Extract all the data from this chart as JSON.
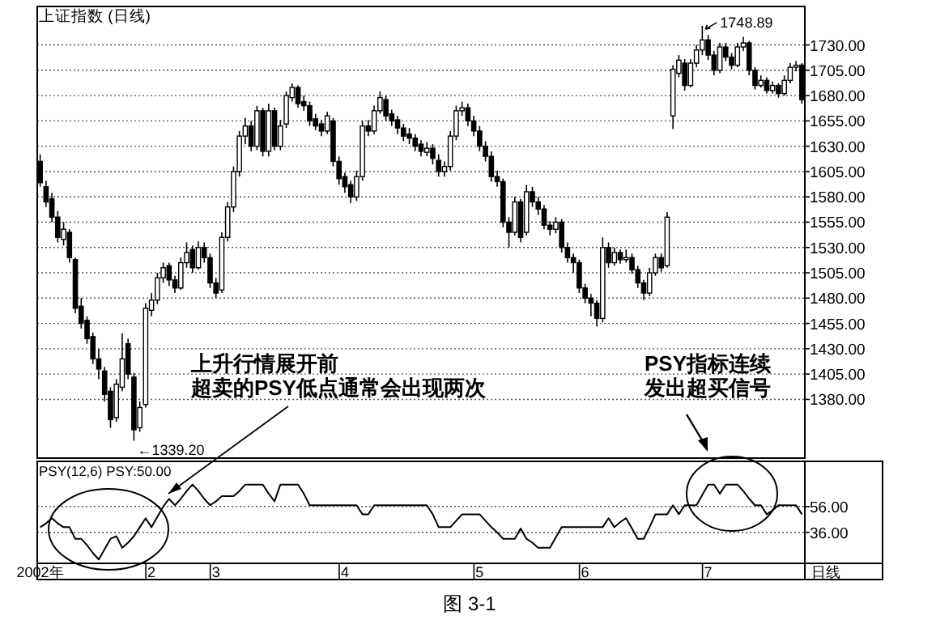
{
  "chart_data": [
    {
      "type": "candlestick",
      "title": "上证指数 (日线)",
      "color": "#000000",
      "categories": [
        null,
        null,
        null,
        null,
        null,
        null,
        null,
        null,
        null,
        null,
        null,
        null,
        null,
        null,
        null,
        null,
        null,
        null,
        null,
        null,
        null,
        null,
        null,
        null,
        null,
        null,
        null,
        null,
        null,
        null,
        null,
        null,
        null,
        null,
        null,
        null,
        null,
        null,
        null,
        null,
        null,
        null,
        null,
        null,
        null,
        null,
        null,
        null,
        null,
        null,
        null,
        null,
        null,
        null,
        null,
        null,
        null,
        null,
        null,
        null,
        null,
        null,
        null,
        null,
        null,
        null,
        null,
        null,
        null,
        null,
        null,
        null,
        null,
        null,
        null,
        null,
        null,
        null,
        null,
        null,
        null,
        null,
        null,
        null,
        null,
        null,
        null,
        null,
        null,
        null,
        null,
        null,
        null,
        null,
        null,
        null,
        null,
        null,
        null,
        null,
        null,
        null,
        null,
        null,
        null,
        null,
        null,
        null,
        null,
        null,
        null,
        null,
        null,
        null,
        null,
        null,
        null,
        null,
        null,
        null,
        null,
        null,
        null,
        null,
        null,
        null,
        null,
        null,
        null,
        null,
        null
      ],
      "ohlc": [
        [
          1615,
          1622,
          1590,
          1594
        ],
        [
          1590,
          1596,
          1570,
          1575
        ],
        [
          1578,
          1584,
          1555,
          1560
        ],
        [
          1560,
          1566,
          1535,
          1540
        ],
        [
          1538,
          1555,
          1532,
          1548
        ],
        [
          1545,
          1548,
          1515,
          1520
        ],
        [
          1518,
          1520,
          1465,
          1470
        ],
        [
          1472,
          1480,
          1450,
          1455
        ],
        [
          1458,
          1462,
          1435,
          1440
        ],
        [
          1442,
          1446,
          1415,
          1420
        ],
        [
          1420,
          1430,
          1400,
          1410
        ],
        [
          1408,
          1412,
          1378,
          1385
        ],
        [
          1388,
          1392,
          1352,
          1360
        ],
        [
          1362,
          1400,
          1358,
          1395
        ],
        [
          1392,
          1445,
          1388,
          1420
        ],
        [
          1435,
          1440,
          1400,
          1405
        ],
        [
          1402,
          1406,
          1339.2,
          1350
        ],
        [
          1352,
          1378,
          1348,
          1372
        ],
        [
          1375,
          1475,
          1372,
          1470
        ],
        [
          1468,
          1485,
          1462,
          1478
        ],
        [
          1478,
          1505,
          1474,
          1500
        ],
        [
          1500,
          1515,
          1495,
          1510
        ],
        [
          1512,
          1515,
          1492,
          1498
        ],
        [
          1498,
          1502,
          1485,
          1490
        ],
        [
          1490,
          1520,
          1488,
          1515
        ],
        [
          1515,
          1535,
          1510,
          1525
        ],
        [
          1528,
          1532,
          1505,
          1510
        ],
        [
          1510,
          1536,
          1508,
          1530
        ],
        [
          1530,
          1535,
          1515,
          1520
        ],
        [
          1520,
          1524,
          1490,
          1495
        ],
        [
          1495,
          1500,
          1480,
          1485
        ],
        [
          1488,
          1545,
          1485,
          1540
        ],
        [
          1540,
          1575,
          1536,
          1570
        ],
        [
          1570,
          1610,
          1565,
          1605
        ],
        [
          1605,
          1645,
          1600,
          1640
        ],
        [
          1640,
          1658,
          1632,
          1650
        ],
        [
          1650,
          1655,
          1625,
          1630
        ],
        [
          1630,
          1670,
          1626,
          1665
        ],
        [
          1665,
          1668,
          1620,
          1625
        ],
        [
          1625,
          1672,
          1620,
          1665
        ],
        [
          1665,
          1668,
          1626,
          1630
        ],
        [
          1630,
          1656,
          1626,
          1650
        ],
        [
          1652,
          1684,
          1648,
          1680
        ],
        [
          1678,
          1692,
          1674,
          1688
        ],
        [
          1688,
          1690,
          1668,
          1672
        ],
        [
          1674,
          1680,
          1665,
          1670
        ],
        [
          1670,
          1674,
          1650,
          1655
        ],
        [
          1657,
          1662,
          1646,
          1650
        ],
        [
          1652,
          1656,
          1640,
          1645
        ],
        [
          1645,
          1664,
          1642,
          1660
        ],
        [
          1655,
          1658,
          1610,
          1615
        ],
        [
          1615,
          1620,
          1592,
          1598
        ],
        [
          1600,
          1604,
          1584,
          1590
        ],
        [
          1592,
          1596,
          1574,
          1580
        ],
        [
          1580,
          1606,
          1576,
          1600
        ],
        [
          1600,
          1655,
          1596,
          1650
        ],
        [
          1650,
          1656,
          1640,
          1645
        ],
        [
          1645,
          1670,
          1642,
          1665
        ],
        [
          1665,
          1684,
          1662,
          1678
        ],
        [
          1676,
          1680,
          1655,
          1660
        ],
        [
          1662,
          1666,
          1650,
          1655
        ],
        [
          1656,
          1660,
          1642,
          1648
        ],
        [
          1648,
          1652,
          1635,
          1640
        ],
        [
          1642,
          1648,
          1632,
          1638
        ],
        [
          1638,
          1642,
          1625,
          1630
        ],
        [
          1632,
          1636,
          1620,
          1625
        ],
        [
          1624,
          1634,
          1620,
          1628
        ],
        [
          1628,
          1632,
          1612,
          1618
        ],
        [
          1616,
          1622,
          1600,
          1605
        ],
        [
          1605,
          1615,
          1600,
          1610
        ],
        [
          1610,
          1645,
          1606,
          1640
        ],
        [
          1640,
          1670,
          1636,
          1665
        ],
        [
          1665,
          1674,
          1660,
          1668
        ],
        [
          1668,
          1672,
          1650,
          1655
        ],
        [
          1655,
          1660,
          1640,
          1645
        ],
        [
          1645,
          1650,
          1625,
          1630
        ],
        [
          1630,
          1635,
          1615,
          1620
        ],
        [
          1620,
          1625,
          1595,
          1600
        ],
        [
          1600,
          1606,
          1590,
          1595
        ],
        [
          1595,
          1598,
          1550,
          1555
        ],
        [
          1555,
          1560,
          1530,
          1545
        ],
        [
          1545,
          1580,
          1542,
          1575
        ],
        [
          1575,
          1578,
          1535,
          1540
        ],
        [
          1545,
          1592,
          1542,
          1585
        ],
        [
          1585,
          1590,
          1570,
          1575
        ],
        [
          1575,
          1580,
          1562,
          1568
        ],
        [
          1568,
          1572,
          1548,
          1552
        ],
        [
          1552,
          1556,
          1542,
          1548
        ],
        [
          1548,
          1560,
          1544,
          1555
        ],
        [
          1555,
          1558,
          1525,
          1530
        ],
        [
          1530,
          1535,
          1515,
          1520
        ],
        [
          1520,
          1524,
          1505,
          1515
        ],
        [
          1515,
          1518,
          1485,
          1490
        ],
        [
          1490,
          1494,
          1475,
          1480
        ],
        [
          1480,
          1484,
          1462,
          1475
        ],
        [
          1475,
          1478,
          1452,
          1460
        ],
        [
          1460,
          1540,
          1456,
          1530
        ],
        [
          1530,
          1535,
          1510,
          1515
        ],
        [
          1515,
          1530,
          1512,
          1525
        ],
        [
          1525,
          1528,
          1514,
          1518
        ],
        [
          1518,
          1528,
          1515,
          1520
        ],
        [
          1520,
          1524,
          1504,
          1508
        ],
        [
          1508,
          1512,
          1490,
          1495
        ],
        [
          1495,
          1498,
          1478,
          1485
        ],
        [
          1485,
          1510,
          1482,
          1505
        ],
        [
          1505,
          1524,
          1502,
          1520
        ],
        [
          1520,
          1524,
          1506,
          1510
        ],
        [
          1512,
          1565,
          1510,
          1560
        ],
        [
          1660,
          1710,
          1647,
          1706
        ],
        [
          1702,
          1720,
          1698,
          1715
        ],
        [
          1712,
          1716,
          1685,
          1690
        ],
        [
          1690,
          1716,
          1688,
          1712
        ],
        [
          1712,
          1730,
          1708,
          1725
        ],
        [
          1725,
          1748.89,
          1720,
          1735
        ],
        [
          1735,
          1740,
          1715,
          1720
        ],
        [
          1720,
          1724,
          1700,
          1705
        ],
        [
          1705,
          1732,
          1702,
          1728
        ],
        [
          1728,
          1732,
          1714,
          1718
        ],
        [
          1718,
          1722,
          1706,
          1710
        ],
        [
          1710,
          1732,
          1708,
          1728
        ],
        [
          1728,
          1738,
          1724,
          1732
        ],
        [
          1732,
          1734,
          1700,
          1705
        ],
        [
          1705,
          1708,
          1686,
          1690
        ],
        [
          1690,
          1700,
          1688,
          1695
        ],
        [
          1695,
          1698,
          1682,
          1685
        ],
        [
          1685,
          1694,
          1682,
          1690
        ],
        [
          1690,
          1692,
          1678,
          1682
        ],
        [
          1682,
          1700,
          1680,
          1695
        ],
        [
          1695,
          1712,
          1692,
          1708
        ],
        [
          1708,
          1714,
          1704,
          1710
        ],
        [
          1710,
          1712,
          1672,
          1676
        ]
      ],
      "ylim": [
        1322,
        1768
      ],
      "yticks": [
        {
          "value": 1380,
          "label": "1380.00"
        },
        {
          "value": 1405,
          "label": "1405.00"
        },
        {
          "value": 1430,
          "label": "1430.00"
        },
        {
          "value": 1455,
          "label": "1455.00"
        },
        {
          "value": 1480,
          "label": "1480.00"
        },
        {
          "value": 1505,
          "label": "1505.00"
        },
        {
          "value": 1530,
          "label": "1530.00"
        },
        {
          "value": 1555,
          "label": "1555.00"
        },
        {
          "value": 1580,
          "label": "1580.00"
        },
        {
          "value": 1605,
          "label": "1605.00"
        },
        {
          "value": 1630,
          "label": "1630.00"
        },
        {
          "value": 1655,
          "label": "1655.00"
        },
        {
          "value": 1680,
          "label": "1680.00"
        },
        {
          "value": 1705,
          "label": "1705.00"
        },
        {
          "value": 1730,
          "label": "1730.00"
        }
      ],
      "grid": "y",
      "annotations": [
        "1748.89",
        "←1339.20",
        "上升行情展开前",
        "超卖的PSY低点通常会出现两次",
        "PSY指标连续",
        "发出超买信号",
        "图 3-1"
      ]
    },
    {
      "type": "line",
      "title": "PSY(12,6)   PSY:50.00",
      "color": "#000000",
      "categories": [
        "2002年",
        null,
        null,
        null,
        null,
        null,
        null,
        null,
        null,
        null,
        null,
        null,
        null,
        null,
        null,
        null,
        null,
        null,
        null,
        "2",
        null,
        null,
        null,
        null,
        null,
        null,
        null,
        null,
        null,
        null,
        "3",
        null,
        null,
        null,
        null,
        null,
        null,
        null,
        null,
        null,
        null,
        null,
        null,
        null,
        null,
        null,
        null,
        null,
        null,
        null,
        null,
        null,
        "4",
        null,
        null,
        null,
        null,
        null,
        null,
        null,
        null,
        null,
        null,
        null,
        null,
        null,
        null,
        null,
        null,
        null,
        null,
        null,
        null,
        null,
        null,
        "5",
        null,
        null,
        null,
        null,
        null,
        null,
        null,
        null,
        null,
        null,
        null,
        null,
        null,
        null,
        null,
        null,
        null,
        "6",
        null,
        null,
        null,
        null,
        null,
        null,
        null,
        null,
        null,
        null,
        null,
        null,
        null,
        null,
        null,
        null,
        null,
        null,
        null,
        null,
        "7",
        null,
        null,
        null,
        null,
        null,
        null,
        null,
        null,
        null,
        null,
        null,
        null,
        null,
        null,
        null,
        null
      ],
      "values": [
        40,
        43,
        47,
        43,
        40,
        40,
        31,
        31,
        26,
        20,
        15,
        23,
        31,
        33,
        24,
        28,
        33,
        40,
        47,
        40,
        48,
        56,
        62,
        57,
        62,
        68,
        73,
        68,
        62,
        57,
        60,
        64,
        64,
        64,
        68,
        73,
        73,
        73,
        73,
        66,
        60,
        73,
        73,
        73,
        73,
        66,
        57,
        57,
        57,
        57,
        57,
        57,
        57,
        57,
        57,
        50,
        50,
        57,
        57,
        57,
        57,
        57,
        57,
        57,
        57,
        57,
        57,
        50,
        40,
        40,
        40,
        45,
        50,
        50,
        50,
        50,
        45,
        40,
        36,
        31,
        31,
        31,
        39,
        31,
        28,
        24,
        24,
        24,
        32,
        40,
        40,
        40,
        40,
        40,
        40,
        40,
        40,
        47,
        40,
        44,
        47,
        39,
        31,
        31,
        40,
        50,
        50,
        50,
        57,
        50,
        57,
        57,
        57,
        65,
        73,
        73,
        66,
        73,
        73,
        73,
        68,
        62,
        57,
        57,
        50,
        53,
        57,
        57,
        57,
        57,
        50
      ],
      "ylim": [
        12,
        91
      ],
      "yticks": [
        {
          "value": 36,
          "label": "36.00"
        },
        {
          "value": 56,
          "label": "56.00"
        }
      ],
      "grid": "y",
      "annotations": [
        "日线"
      ]
    }
  ]
}
